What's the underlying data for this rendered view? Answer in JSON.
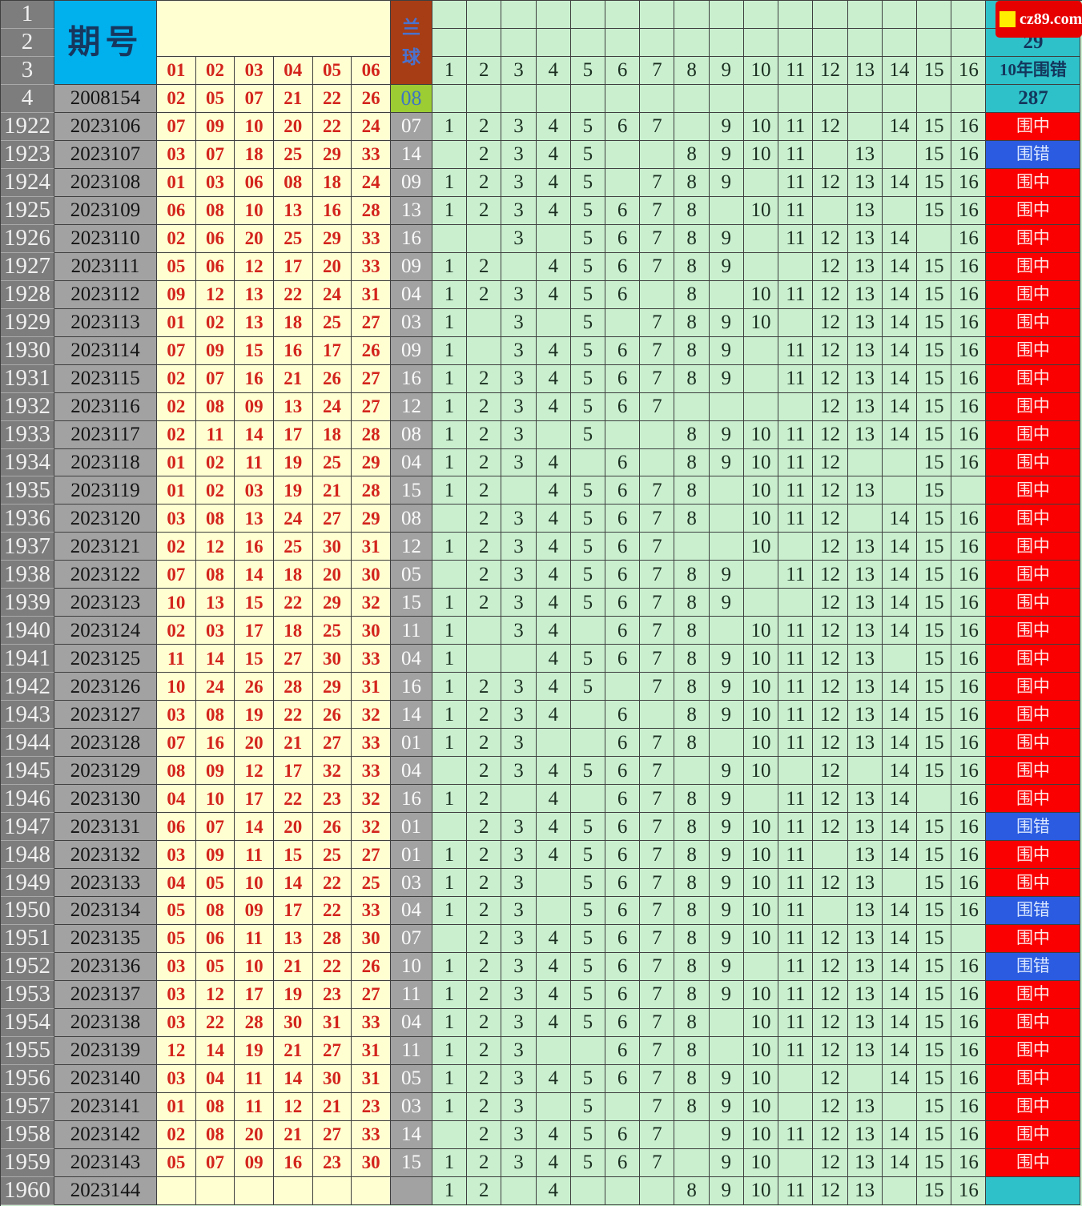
{
  "watermark": {
    "label": "cz89.com"
  },
  "colors": {
    "hit_red": "#fa0000",
    "miss_blue": "#2a5be0",
    "summary_teal": "#2ec1c9",
    "period_header_cyan": "#00b1ee",
    "blue_header_brick": "#a73d14",
    "base_blue_green": "#9ccd33",
    "red_ball_text": "#d3241c",
    "red_area_cream": "#ffffd2",
    "trend_green": "#c9efcf",
    "row_gray_dark": "#7d7d7d",
    "row_gray_light": "#a2a2a2",
    "watermark_red": "#e60000",
    "watermark_square_yellow": "#ffee00"
  },
  "chart_data": {
    "type": "table",
    "corner_row_numbers": [
      "1",
      "2",
      "3",
      "4"
    ],
    "period_header": "期号",
    "blue_header": "兰球",
    "red_ball_headers": [
      "01",
      "02",
      "03",
      "04",
      "05",
      "06"
    ],
    "trend_headers": [
      "1",
      "2",
      "3",
      "4",
      "5",
      "6",
      "7",
      "8",
      "9",
      "10",
      "11",
      "12",
      "13",
      "14",
      "15",
      "16"
    ],
    "summary": {
      "row1_label": "09年围错",
      "row1_value": "29",
      "row2_label": "10年围错",
      "row2_value": "287"
    },
    "base_row": {
      "row_number": "4",
      "period": "2008154",
      "red_balls": [
        "02",
        "05",
        "07",
        "21",
        "22",
        "26"
      ],
      "blue_ball": "08"
    },
    "status_hit_label": "围中",
    "status_miss_label": "围错",
    "rows": [
      {
        "row_number": "1922",
        "period": "2023106",
        "red_balls": [
          "07",
          "09",
          "10",
          "20",
          "22",
          "24"
        ],
        "blue_ball": "07",
        "trend": [
          1,
          2,
          3,
          4,
          5,
          6,
          7,
          9,
          10,
          11,
          12,
          14,
          15,
          16
        ],
        "status": "围中"
      },
      {
        "row_number": "1923",
        "period": "2023107",
        "red_balls": [
          "03",
          "07",
          "18",
          "25",
          "29",
          "33"
        ],
        "blue_ball": "14",
        "trend": [
          2,
          3,
          4,
          5,
          8,
          9,
          10,
          11,
          13,
          15,
          16
        ],
        "status": "围错"
      },
      {
        "row_number": "1924",
        "period": "2023108",
        "red_balls": [
          "01",
          "03",
          "06",
          "08",
          "18",
          "24"
        ],
        "blue_ball": "09",
        "trend": [
          1,
          2,
          3,
          4,
          5,
          7,
          8,
          9,
          11,
          12,
          13,
          14,
          15,
          16
        ],
        "status": "围中"
      },
      {
        "row_number": "1925",
        "period": "2023109",
        "red_balls": [
          "06",
          "08",
          "10",
          "13",
          "16",
          "28"
        ],
        "blue_ball": "13",
        "trend": [
          1,
          2,
          3,
          4,
          5,
          6,
          7,
          8,
          10,
          11,
          13,
          15,
          16
        ],
        "status": "围中"
      },
      {
        "row_number": "1926",
        "period": "2023110",
        "red_balls": [
          "02",
          "06",
          "20",
          "25",
          "29",
          "33"
        ],
        "blue_ball": "16",
        "trend": [
          3,
          5,
          6,
          7,
          8,
          9,
          11,
          12,
          13,
          14,
          16
        ],
        "status": "围中"
      },
      {
        "row_number": "1927",
        "period": "2023111",
        "red_balls": [
          "05",
          "06",
          "12",
          "17",
          "20",
          "33"
        ],
        "blue_ball": "09",
        "trend": [
          1,
          2,
          4,
          5,
          6,
          7,
          8,
          9,
          12,
          13,
          14,
          15,
          16
        ],
        "status": "围中"
      },
      {
        "row_number": "1928",
        "period": "2023112",
        "red_balls": [
          "09",
          "12",
          "13",
          "22",
          "24",
          "31"
        ],
        "blue_ball": "04",
        "trend": [
          1,
          2,
          3,
          4,
          5,
          6,
          8,
          10,
          11,
          12,
          13,
          14,
          15,
          16
        ],
        "status": "围中"
      },
      {
        "row_number": "1929",
        "period": "2023113",
        "red_balls": [
          "01",
          "02",
          "13",
          "18",
          "25",
          "27"
        ],
        "blue_ball": "03",
        "trend": [
          1,
          3,
          5,
          7,
          8,
          9,
          10,
          12,
          13,
          14,
          15,
          16
        ],
        "status": "围中"
      },
      {
        "row_number": "1930",
        "period": "2023114",
        "red_balls": [
          "07",
          "09",
          "15",
          "16",
          "17",
          "26"
        ],
        "blue_ball": "09",
        "trend": [
          1,
          3,
          4,
          5,
          6,
          7,
          8,
          9,
          11,
          12,
          13,
          14,
          15,
          16
        ],
        "status": "围中"
      },
      {
        "row_number": "1931",
        "period": "2023115",
        "red_balls": [
          "02",
          "07",
          "16",
          "21",
          "26",
          "27"
        ],
        "blue_ball": "16",
        "trend": [
          1,
          2,
          3,
          4,
          5,
          6,
          7,
          8,
          9,
          11,
          12,
          13,
          14,
          15,
          16
        ],
        "status": "围中"
      },
      {
        "row_number": "1932",
        "period": "2023116",
        "red_balls": [
          "02",
          "08",
          "09",
          "13",
          "24",
          "27"
        ],
        "blue_ball": "12",
        "trend": [
          1,
          2,
          3,
          4,
          5,
          6,
          7,
          12,
          13,
          14,
          15,
          16
        ],
        "status": "围中"
      },
      {
        "row_number": "1933",
        "period": "2023117",
        "red_balls": [
          "02",
          "11",
          "14",
          "17",
          "18",
          "28"
        ],
        "blue_ball": "08",
        "trend": [
          1,
          2,
          3,
          5,
          8,
          9,
          10,
          11,
          12,
          13,
          14,
          15,
          16
        ],
        "status": "围中"
      },
      {
        "row_number": "1934",
        "period": "2023118",
        "red_balls": [
          "01",
          "02",
          "11",
          "19",
          "25",
          "29"
        ],
        "blue_ball": "04",
        "trend": [
          1,
          2,
          3,
          4,
          6,
          8,
          9,
          10,
          11,
          12,
          15,
          16
        ],
        "status": "围中"
      },
      {
        "row_number": "1935",
        "period": "2023119",
        "red_balls": [
          "01",
          "02",
          "03",
          "19",
          "21",
          "28"
        ],
        "blue_ball": "15",
        "trend": [
          1,
          2,
          4,
          5,
          6,
          7,
          8,
          10,
          11,
          12,
          13,
          15
        ],
        "status": "围中"
      },
      {
        "row_number": "1936",
        "period": "2023120",
        "red_balls": [
          "03",
          "08",
          "13",
          "24",
          "27",
          "29"
        ],
        "blue_ball": "08",
        "trend": [
          2,
          3,
          4,
          5,
          6,
          7,
          8,
          10,
          11,
          12,
          14,
          15,
          16
        ],
        "status": "围中"
      },
      {
        "row_number": "1937",
        "period": "2023121",
        "red_balls": [
          "02",
          "12",
          "16",
          "25",
          "30",
          "31"
        ],
        "blue_ball": "12",
        "trend": [
          1,
          2,
          3,
          4,
          5,
          6,
          7,
          10,
          12,
          13,
          14,
          15,
          16
        ],
        "status": "围中"
      },
      {
        "row_number": "1938",
        "period": "2023122",
        "red_balls": [
          "07",
          "08",
          "14",
          "18",
          "20",
          "30"
        ],
        "blue_ball": "05",
        "trend": [
          2,
          3,
          4,
          5,
          6,
          7,
          8,
          9,
          11,
          12,
          13,
          14,
          15,
          16
        ],
        "status": "围中"
      },
      {
        "row_number": "1939",
        "period": "2023123",
        "red_balls": [
          "10",
          "13",
          "15",
          "22",
          "29",
          "32"
        ],
        "blue_ball": "15",
        "trend": [
          1,
          2,
          3,
          4,
          5,
          6,
          7,
          8,
          9,
          12,
          13,
          14,
          15,
          16
        ],
        "status": "围中"
      },
      {
        "row_number": "1940",
        "period": "2023124",
        "red_balls": [
          "02",
          "03",
          "17",
          "18",
          "25",
          "30"
        ],
        "blue_ball": "11",
        "trend": [
          1,
          3,
          4,
          6,
          7,
          8,
          10,
          11,
          12,
          13,
          14,
          15,
          16
        ],
        "status": "围中"
      },
      {
        "row_number": "1941",
        "period": "2023125",
        "red_balls": [
          "11",
          "14",
          "15",
          "27",
          "30",
          "33"
        ],
        "blue_ball": "04",
        "trend": [
          1,
          4,
          5,
          6,
          7,
          8,
          9,
          10,
          11,
          12,
          13,
          15,
          16
        ],
        "status": "围中"
      },
      {
        "row_number": "1942",
        "period": "2023126",
        "red_balls": [
          "10",
          "24",
          "26",
          "28",
          "29",
          "31"
        ],
        "blue_ball": "16",
        "trend": [
          1,
          2,
          3,
          4,
          5,
          7,
          8,
          9,
          10,
          11,
          12,
          13,
          14,
          15,
          16
        ],
        "status": "围中"
      },
      {
        "row_number": "1943",
        "period": "2023127",
        "red_balls": [
          "03",
          "08",
          "19",
          "22",
          "26",
          "32"
        ],
        "blue_ball": "14",
        "trend": [
          1,
          2,
          3,
          4,
          6,
          8,
          9,
          10,
          11,
          12,
          13,
          14,
          15,
          16
        ],
        "status": "围中"
      },
      {
        "row_number": "1944",
        "period": "2023128",
        "red_balls": [
          "07",
          "16",
          "20",
          "21",
          "27",
          "33"
        ],
        "blue_ball": "01",
        "trend": [
          1,
          2,
          3,
          6,
          7,
          8,
          10,
          11,
          12,
          13,
          14,
          15,
          16
        ],
        "status": "围中"
      },
      {
        "row_number": "1945",
        "period": "2023129",
        "red_balls": [
          "08",
          "09",
          "12",
          "17",
          "32",
          "33"
        ],
        "blue_ball": "04",
        "trend": [
          2,
          3,
          4,
          5,
          6,
          7,
          9,
          10,
          12,
          14,
          15,
          16
        ],
        "status": "围中"
      },
      {
        "row_number": "1946",
        "period": "2023130",
        "red_balls": [
          "04",
          "10",
          "17",
          "22",
          "23",
          "32"
        ],
        "blue_ball": "16",
        "trend": [
          1,
          2,
          4,
          6,
          7,
          8,
          9,
          11,
          12,
          13,
          14,
          16
        ],
        "status": "围中"
      },
      {
        "row_number": "1947",
        "period": "2023131",
        "red_balls": [
          "06",
          "07",
          "14",
          "20",
          "26",
          "32"
        ],
        "blue_ball": "01",
        "trend": [
          2,
          3,
          4,
          5,
          6,
          7,
          8,
          9,
          10,
          11,
          12,
          13,
          14,
          15,
          16
        ],
        "status": "围错"
      },
      {
        "row_number": "1948",
        "period": "2023132",
        "red_balls": [
          "03",
          "09",
          "11",
          "15",
          "25",
          "27"
        ],
        "blue_ball": "01",
        "trend": [
          1,
          2,
          3,
          4,
          5,
          6,
          7,
          8,
          9,
          10,
          11,
          13,
          14,
          15,
          16
        ],
        "status": "围中"
      },
      {
        "row_number": "1949",
        "period": "2023133",
        "red_balls": [
          "04",
          "05",
          "10",
          "14",
          "22",
          "25"
        ],
        "blue_ball": "03",
        "trend": [
          1,
          2,
          3,
          5,
          6,
          7,
          8,
          9,
          10,
          11,
          12,
          13,
          15,
          16
        ],
        "status": "围中"
      },
      {
        "row_number": "1950",
        "period": "2023134",
        "red_balls": [
          "05",
          "08",
          "09",
          "17",
          "22",
          "33"
        ],
        "blue_ball": "04",
        "trend": [
          1,
          2,
          3,
          5,
          6,
          7,
          8,
          9,
          10,
          11,
          13,
          14,
          15,
          16
        ],
        "status": "围错"
      },
      {
        "row_number": "1951",
        "period": "2023135",
        "red_balls": [
          "05",
          "06",
          "11",
          "13",
          "28",
          "30"
        ],
        "blue_ball": "07",
        "trend": [
          2,
          3,
          4,
          5,
          6,
          7,
          8,
          9,
          10,
          11,
          12,
          13,
          14,
          15
        ],
        "status": "围中"
      },
      {
        "row_number": "1952",
        "period": "2023136",
        "red_balls": [
          "03",
          "05",
          "10",
          "21",
          "22",
          "26"
        ],
        "blue_ball": "10",
        "trend": [
          1,
          2,
          3,
          4,
          5,
          6,
          7,
          8,
          9,
          11,
          12,
          13,
          14,
          15,
          16
        ],
        "status": "围错"
      },
      {
        "row_number": "1953",
        "period": "2023137",
        "red_balls": [
          "03",
          "12",
          "17",
          "19",
          "23",
          "27"
        ],
        "blue_ball": "11",
        "trend": [
          1,
          2,
          3,
          4,
          5,
          6,
          7,
          8,
          9,
          10,
          11,
          12,
          13,
          14,
          15,
          16
        ],
        "status": "围中"
      },
      {
        "row_number": "1954",
        "period": "2023138",
        "red_balls": [
          "03",
          "22",
          "28",
          "30",
          "31",
          "33"
        ],
        "blue_ball": "04",
        "trend": [
          1,
          2,
          3,
          4,
          5,
          6,
          7,
          8,
          10,
          11,
          12,
          13,
          14,
          15,
          16
        ],
        "status": "围中"
      },
      {
        "row_number": "1955",
        "period": "2023139",
        "red_balls": [
          "12",
          "14",
          "19",
          "21",
          "27",
          "31"
        ],
        "blue_ball": "11",
        "trend": [
          1,
          2,
          3,
          6,
          7,
          8,
          10,
          11,
          12,
          13,
          14,
          15,
          16
        ],
        "status": "围中"
      },
      {
        "row_number": "1956",
        "period": "2023140",
        "red_balls": [
          "03",
          "04",
          "11",
          "14",
          "30",
          "31"
        ],
        "blue_ball": "05",
        "trend": [
          1,
          2,
          3,
          4,
          5,
          6,
          7,
          8,
          9,
          10,
          12,
          14,
          15,
          16
        ],
        "status": "围中"
      },
      {
        "row_number": "1957",
        "period": "2023141",
        "red_balls": [
          "01",
          "08",
          "11",
          "12",
          "21",
          "23"
        ],
        "blue_ball": "03",
        "trend": [
          1,
          2,
          3,
          5,
          7,
          8,
          9,
          10,
          12,
          13,
          15,
          16
        ],
        "status": "围中"
      },
      {
        "row_number": "1958",
        "period": "2023142",
        "red_balls": [
          "02",
          "08",
          "20",
          "21",
          "27",
          "33"
        ],
        "blue_ball": "14",
        "trend": [
          2,
          3,
          4,
          5,
          6,
          7,
          9,
          10,
          11,
          12,
          13,
          14,
          15,
          16
        ],
        "status": "围中"
      },
      {
        "row_number": "1959",
        "period": "2023143",
        "red_balls": [
          "05",
          "07",
          "09",
          "16",
          "23",
          "30"
        ],
        "blue_ball": "15",
        "trend": [
          1,
          2,
          3,
          4,
          5,
          6,
          7,
          9,
          10,
          12,
          13,
          14,
          15,
          16
        ],
        "status": "围中"
      },
      {
        "row_number": "1960",
        "period": "2023144",
        "red_balls": [
          "",
          "",
          "",
          "",
          "",
          ""
        ],
        "blue_ball": "",
        "trend": [
          1,
          2,
          4,
          8,
          9,
          10,
          11,
          12,
          13,
          15,
          16
        ],
        "status": ""
      }
    ]
  }
}
